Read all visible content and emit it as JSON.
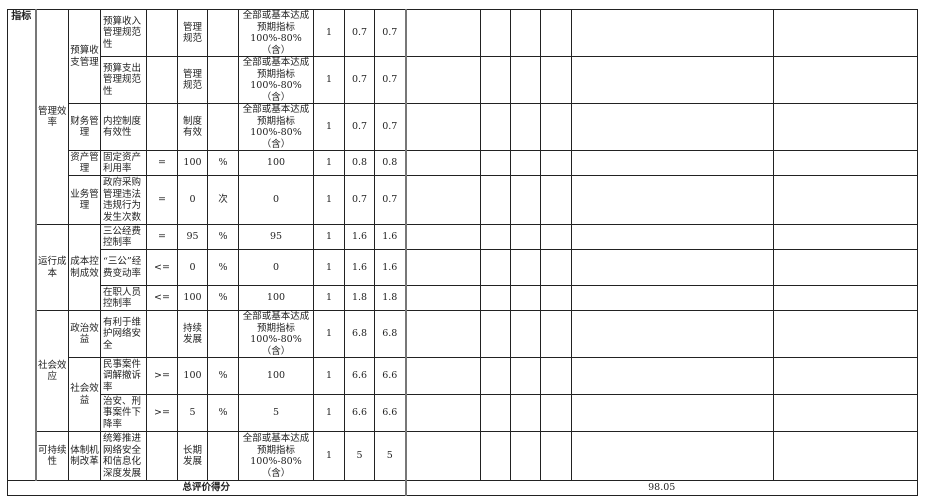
{
  "level1_label": "指标",
  "groups": [
    {
      "level2": "管理效率",
      "subs": [
        {
          "level3": "预算收支管理",
          "rows": [
            {
              "indicator": "预算收入管理规范性",
              "op": "",
              "value": "管理规范",
              "unit": "",
              "actual": "全部或基本达成预期指标100%-80%（含）",
              "c9": "1",
              "weight": "0.7",
              "score": "0.7"
            },
            {
              "indicator": "预算支出管理规范性",
              "op": "",
              "value": "管理规范",
              "unit": "",
              "actual": "全部或基本达成预期指标100%-80%（含）",
              "c9": "1",
              "weight": "0.7",
              "score": "0.7"
            }
          ]
        },
        {
          "level3": "财务管理",
          "rows": [
            {
              "indicator": "内控制度有效性",
              "op": "",
              "value": "制度有效",
              "unit": "",
              "actual": "全部或基本达成预期指标100%-80%（含）",
              "c9": "1",
              "weight": "0.7",
              "score": "0.7"
            }
          ]
        },
        {
          "level3": "资产管理",
          "rows": [
            {
              "indicator": "固定资产利用率",
              "op": "=",
              "value": "100",
              "unit": "%",
              "actual": "100",
              "c9": "1",
              "weight": "0.8",
              "score": "0.8"
            }
          ]
        },
        {
          "level3": "业务管理",
          "rows": [
            {
              "indicator": "政府采购管理违法违规行为发生次数",
              "op": "=",
              "value": "0",
              "unit": "次",
              "actual": "0",
              "c9": "1",
              "weight": "0.7",
              "score": "0.7"
            }
          ]
        }
      ]
    },
    {
      "level2": "运行成本",
      "subs": [
        {
          "level3": "成本控制成效",
          "rows": [
            {
              "indicator": "三公经费控制率",
              "op": "=",
              "value": "95",
              "unit": "%",
              "actual": "95",
              "c9": "1",
              "weight": "1.6",
              "score": "1.6"
            },
            {
              "indicator": "“三公”经费变动率",
              "op": "<=",
              "value": "0",
              "unit": "%",
              "actual": "0",
              "c9": "1",
              "weight": "1.6",
              "score": "1.6"
            },
            {
              "indicator": "在职人员控制率",
              "op": "<=",
              "value": "100",
              "unit": "%",
              "actual": "100",
              "c9": "1",
              "weight": "1.8",
              "score": "1.8"
            }
          ]
        }
      ]
    },
    {
      "level2": "社会效应",
      "subs": [
        {
          "level3": "政治效益",
          "rows": [
            {
              "indicator": "有利于维护网络安全",
              "op": "",
              "value": "持续发展",
              "unit": "",
              "actual": "全部或基本达成预期指标100%-80%（含）",
              "c9": "1",
              "weight": "6.8",
              "score": "6.8"
            }
          ]
        },
        {
          "level3": "社会效益",
          "rows": [
            {
              "indicator": "民事案件调解撤诉率",
              "op": ">=",
              "value": "100",
              "unit": "%",
              "actual": "100",
              "c9": "1",
              "weight": "6.6",
              "score": "6.6"
            },
            {
              "indicator": "治安、刑事案件下降率",
              "op": ">=",
              "value": "5",
              "unit": "%",
              "actual": "5",
              "c9": "1",
              "weight": "6.6",
              "score": "6.6"
            }
          ]
        }
      ]
    },
    {
      "level2": "可持续性",
      "subs": [
        {
          "level3": "体制机制改革",
          "rows": [
            {
              "indicator": "统筹推进网络安全和信息化深度发展",
              "op": "",
              "value": "长期发展",
              "unit": "",
              "actual": "全部或基本达成预期指标100%-80%（含）",
              "c9": "1",
              "weight": "5",
              "score": "5"
            }
          ]
        }
      ]
    }
  ],
  "total": {
    "label": "总评价得分",
    "value": "98.05"
  }
}
